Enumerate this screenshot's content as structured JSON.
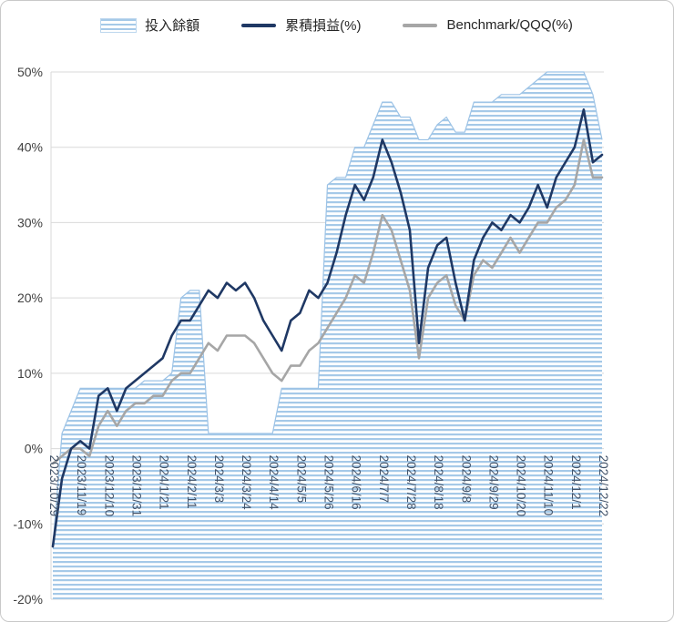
{
  "legend": {
    "items": [
      {
        "label": "投入餘額",
        "swatch": "striped-area",
        "color": "#9dc3e6"
      },
      {
        "label": "累積損益(%)",
        "swatch": "line",
        "color": "#1f3864"
      },
      {
        "label": "Benchmark/QQQ(%)",
        "swatch": "line",
        "color": "#a6a6a6"
      }
    ]
  },
  "colors": {
    "background": "#ffffff",
    "border": "#c9c9c9",
    "grid": "#d9d9d9",
    "axis_text": "#404040",
    "x_tick_text": "#44546a",
    "area_stripe": "#a5c9e8",
    "area_edge": "#9dc3e6",
    "line_navy": "#1f3864",
    "line_gray": "#a6a6a6"
  },
  "chart_data": {
    "type": "area",
    "title": "",
    "grid": "horizontal only",
    "legend_position": "top",
    "ylim": [
      -20,
      50
    ],
    "y_tick_step": 10,
    "y_tick_labels": [
      "50%",
      "40%",
      "30%",
      "20%",
      "10%",
      "0%",
      "-10%",
      "-20%"
    ],
    "x_unit": "weekly points from 2023/10/29 to 2024/12/22",
    "x_tick_every_n_points": 3,
    "x_tick_labels": [
      "2023/10/29",
      "2023/11/19",
      "2023/12/10",
      "2023/12/31",
      "2024/1/21",
      "2024/2/11",
      "2024/3/3",
      "2024/3/24",
      "2024/4/14",
      "2024/5/5",
      "2024/5/26",
      "2024/6/16",
      "2024/7/7",
      "2024/7/28",
      "2024/8/18",
      "2024/9/8",
      "2024/9/29",
      "2024/10/20",
      "2024/11/10",
      "2024/12/1",
      "2024/12/22"
    ],
    "series": [
      {
        "name": "投入餘額",
        "type": "area",
        "fill": "horizontal-stripe-pattern",
        "color": "#9dc3e6",
        "values": [
          -13,
          2,
          5,
          8,
          8,
          8,
          8,
          8,
          8,
          8,
          9,
          9,
          9,
          10,
          20,
          21,
          21,
          2,
          2,
          2,
          2,
          2,
          2,
          2,
          2,
          8,
          8,
          8,
          8,
          8,
          35,
          36,
          36,
          40,
          40,
          43,
          46,
          46,
          44,
          44,
          41,
          41,
          43,
          44,
          42,
          42,
          46,
          46,
          46,
          47,
          47,
          47,
          48,
          49,
          50,
          50,
          50,
          50,
          50,
          47,
          41
        ]
      },
      {
        "name": "累積損益(%)",
        "type": "line",
        "color": "#1f3864",
        "values": [
          -13,
          -4,
          0,
          1,
          0,
          7,
          8,
          5,
          8,
          9,
          10,
          11,
          12,
          15,
          17,
          17,
          19,
          21,
          20,
          22,
          21,
          22,
          20,
          17,
          15,
          13,
          17,
          18,
          21,
          20,
          22,
          26,
          31,
          35,
          33,
          36,
          41,
          38,
          34,
          29,
          14,
          24,
          27,
          28,
          22,
          17,
          25,
          28,
          30,
          29,
          31,
          30,
          32,
          35,
          32,
          36,
          38,
          40,
          45,
          38,
          39
        ]
      },
      {
        "name": "Benchmark/QQQ(%)",
        "type": "line",
        "color": "#a6a6a6",
        "values": [
          -2,
          -1,
          0,
          0,
          -1,
          3,
          5,
          3,
          5,
          6,
          6,
          7,
          7,
          9,
          10,
          10,
          12,
          14,
          13,
          15,
          15,
          15,
          14,
          12,
          10,
          9,
          11,
          11,
          13,
          14,
          16,
          18,
          20,
          23,
          22,
          26,
          31,
          29,
          25,
          21,
          12,
          20,
          22,
          23,
          19,
          17,
          23,
          25,
          24,
          26,
          28,
          26,
          28,
          30,
          30,
          32,
          33,
          35,
          41,
          36,
          36
        ]
      }
    ]
  }
}
